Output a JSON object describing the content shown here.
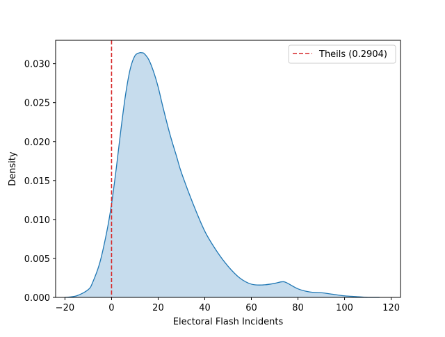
{
  "chart_data": {
    "type": "area",
    "title": "",
    "xlabel": "Electoral Flash Incidents",
    "ylabel": "Density",
    "xlim": [
      -24,
      124
    ],
    "ylim": [
      0,
      0.033
    ],
    "xticks": [
      -20,
      0,
      20,
      40,
      60,
      80,
      100,
      120
    ],
    "yticks": [
      0.0,
      0.005,
      0.01,
      0.015,
      0.02,
      0.025,
      0.03
    ],
    "xtick_labels": [
      "−20",
      "0",
      "20",
      "40",
      "60",
      "80",
      "100",
      "120"
    ],
    "ytick_labels": [
      "0.000",
      "0.005",
      "0.010",
      "0.015",
      "0.020",
      "0.025",
      "0.030"
    ],
    "grid": false,
    "legend_position": "top-right",
    "colors": {
      "kde_line": "#1f77b4",
      "kde_fill": "#c6dced",
      "reference_line": "#d62728"
    },
    "series": [
      {
        "kind": "kde-density",
        "x": [
          -20,
          -15,
          -10,
          -8,
          -5,
          -2,
          0,
          2,
          4,
          6,
          8,
          10,
          12,
          13,
          14,
          16,
          18,
          20,
          22,
          25,
          28,
          30,
          35,
          40,
          45,
          50,
          55,
          60,
          65,
          70,
          73,
          75,
          80,
          85,
          90,
          95,
          100,
          105,
          110,
          115
        ],
        "values": [
          0.0,
          0.0002,
          0.001,
          0.002,
          0.0045,
          0.0085,
          0.012,
          0.0165,
          0.0215,
          0.026,
          0.0293,
          0.031,
          0.0314,
          0.0314,
          0.0313,
          0.0305,
          0.029,
          0.027,
          0.0245,
          0.021,
          0.018,
          0.016,
          0.012,
          0.0085,
          0.006,
          0.004,
          0.0025,
          0.0017,
          0.0016,
          0.0018,
          0.002,
          0.0019,
          0.0011,
          0.0007,
          0.0006,
          0.0004,
          0.0002,
          0.0001,
          0.0,
          0.0
        ]
      }
    ],
    "reference_line": {
      "name": "Theils (0.2904)",
      "x": 0.0
    }
  }
}
